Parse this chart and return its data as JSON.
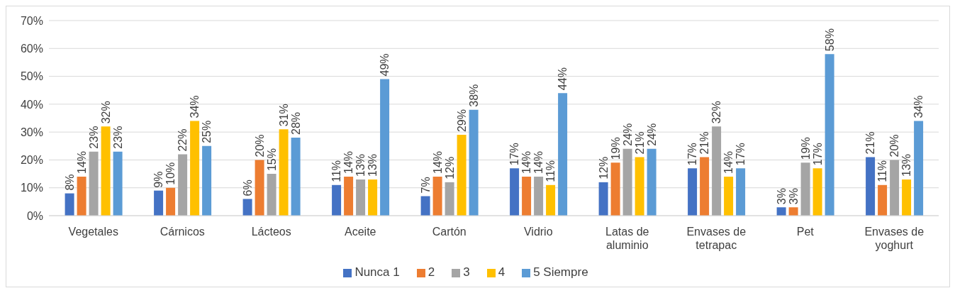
{
  "chart_data": {
    "type": "bar",
    "categories": [
      "Vegetales",
      "Cárnicos",
      "Lácteos",
      "Aceite",
      "Cartón",
      "Vidrio",
      "Latas de aluminio",
      "Envases de tetrapac",
      "Pet",
      "Envases de yoghurt"
    ],
    "series": [
      {
        "name": "Nunca 1",
        "color": "#4472c4",
        "values": [
          8,
          9,
          6,
          11,
          7,
          17,
          12,
          17,
          3,
          21
        ],
        "value_labels": [
          "8%",
          "9%",
          "6%",
          "11%",
          "7%",
          "17%",
          "12%",
          "17%",
          "3%",
          "21%"
        ]
      },
      {
        "name": "2",
        "color": "#ed7d31",
        "values": [
          14,
          10,
          20,
          14,
          14,
          14,
          19,
          21,
          3,
          11
        ],
        "value_labels": [
          "14%",
          "10%",
          "20%",
          "14%",
          "14%",
          "14%",
          "19%",
          "21%",
          "3%",
          "11%"
        ]
      },
      {
        "name": "3",
        "color": "#a5a5a5",
        "values": [
          23,
          22,
          15,
          13,
          12,
          14,
          24,
          32,
          19,
          20
        ],
        "value_labels": [
          "23%",
          "22%",
          "15%",
          "13%",
          "12%",
          "14%",
          "24%",
          "32%",
          "19%",
          "20%"
        ]
      },
      {
        "name": "4",
        "color": "#ffc000",
        "values": [
          32,
          34,
          31,
          13,
          29,
          11,
          21,
          14,
          17,
          13
        ],
        "value_labels": [
          "32%",
          "34%",
          "31%",
          "13%",
          "29%",
          "11%",
          "21%",
          "14%",
          "17%",
          "13%"
        ]
      },
      {
        "name": "5 Siempre",
        "color": "#5b9bd5",
        "values": [
          23,
          25,
          28,
          49,
          38,
          44,
          24,
          17,
          58,
          34
        ],
        "value_labels": [
          "23%",
          "25%",
          "28%",
          "49%",
          "38%",
          "44%",
          "24%",
          "17%",
          "58%",
          "34%"
        ]
      }
    ],
    "ylim": [
      0,
      70
    ],
    "yticks": [
      {
        "value": 0,
        "label": "0%"
      },
      {
        "value": 10,
        "label": "10%"
      },
      {
        "value": 20,
        "label": "20%"
      },
      {
        "value": 30,
        "label": "30%"
      },
      {
        "value": 40,
        "label": "40%"
      },
      {
        "value": 50,
        "label": "50%"
      },
      {
        "value": 60,
        "label": "60%"
      },
      {
        "value": 70,
        "label": "70%"
      }
    ],
    "grid": "y",
    "legend": "bottom"
  }
}
